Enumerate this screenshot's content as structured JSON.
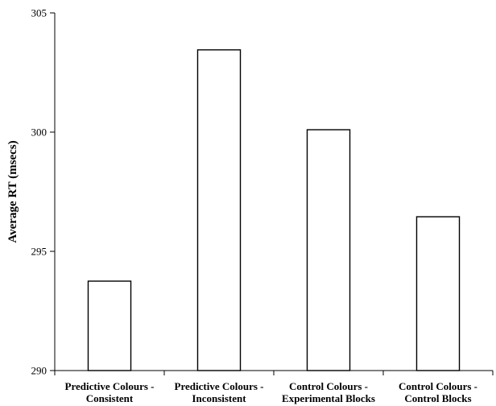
{
  "chart_data": {
    "type": "bar",
    "title": "",
    "xlabel": "",
    "ylabel": "Average RT (msecs)",
    "categories": [
      [
        "Predictive Colours -",
        "Consistent"
      ],
      [
        "Predictive Colours -",
        "Inconsistent"
      ],
      [
        "Control Colours -",
        "Experimental Blocks"
      ],
      [
        "Control Colours -",
        "Control Blocks"
      ]
    ],
    "values": [
      293.75,
      303.45,
      300.1,
      296.45
    ],
    "ylim": [
      290,
      305
    ],
    "yticks": [
      290,
      295,
      300,
      305
    ],
    "grid": false,
    "legend": "none",
    "colors": {
      "bar_fill": "#ffffff",
      "bar_stroke": "#000000",
      "axis": "#000000"
    }
  }
}
